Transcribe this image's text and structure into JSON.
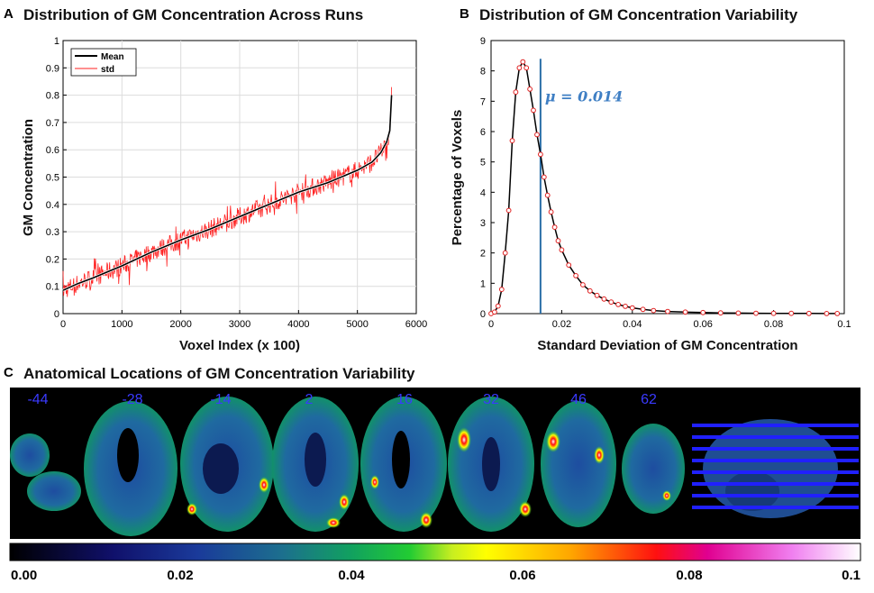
{
  "panels": {
    "a": {
      "letter": "A",
      "title": "Distribution of GM Concentration Across Runs"
    },
    "b": {
      "letter": "B",
      "title": "Distribution of GM Concentration Variability"
    },
    "c": {
      "letter": "C",
      "title": "Anatomical Locations of GM Concentration Variability"
    }
  },
  "chart_data": [
    {
      "type": "line",
      "panel": "A",
      "title": "Distribution of GM Concentration Across Runs",
      "xlabel": "Voxel Index (x 100)",
      "ylabel": "GM Concentration",
      "xlim": [
        0,
        6000
      ],
      "ylim": [
        0,
        1
      ],
      "xticks": [
        0,
        1000,
        2000,
        3000,
        4000,
        5000,
        6000
      ],
      "yticks": [
        0,
        0.1,
        0.2,
        0.3,
        0.4,
        0.5,
        0.6,
        0.7,
        0.8,
        0.9,
        1
      ],
      "grid": true,
      "legend": {
        "position": "top-left",
        "entries": [
          "Mean",
          "std"
        ]
      },
      "series": [
        {
          "name": "Mean",
          "color": "#000000",
          "x": [
            0,
            250,
            500,
            1000,
            1500,
            2000,
            2500,
            3000,
            3500,
            4000,
            4500,
            5000,
            5250,
            5400,
            5500,
            5550,
            5580
          ],
          "y": [
            0.085,
            0.11,
            0.13,
            0.175,
            0.225,
            0.27,
            0.31,
            0.355,
            0.4,
            0.445,
            0.48,
            0.525,
            0.555,
            0.59,
            0.63,
            0.67,
            0.8
          ]
        },
        {
          "name": "std",
          "color": "#ff2020",
          "noise_amplitude": 0.035
        }
      ]
    },
    {
      "type": "line",
      "panel": "B",
      "title": "Distribution of GM Concentration Variability",
      "xlabel": "Standard Deviation of GM Concentration",
      "ylabel": "Percentage of Voxels",
      "xlim": [
        0,
        0.1
      ],
      "ylim": [
        0,
        9
      ],
      "xticks": [
        0,
        0.02,
        0.04,
        0.06,
        0.08,
        0.1
      ],
      "yticks": [
        0,
        1,
        2,
        3,
        4,
        5,
        6,
        7,
        8,
        9
      ],
      "mean_line": {
        "x": 0.014,
        "label": "μ = 0.014",
        "color": "#2a6ea8"
      },
      "series": [
        {
          "name": "Percentage of Voxels",
          "line_color": "#000000",
          "marker_color": "#e02020",
          "x": [
            0.0,
            0.001,
            0.002,
            0.003,
            0.004,
            0.005,
            0.006,
            0.007,
            0.008,
            0.009,
            0.01,
            0.011,
            0.012,
            0.013,
            0.014,
            0.015,
            0.016,
            0.017,
            0.018,
            0.019,
            0.02,
            0.022,
            0.024,
            0.026,
            0.028,
            0.03,
            0.032,
            0.034,
            0.036,
            0.038,
            0.04,
            0.043,
            0.046,
            0.05,
            0.055,
            0.06,
            0.065,
            0.07,
            0.075,
            0.08,
            0.085,
            0.09,
            0.095,
            0.098
          ],
          "y": [
            0.0,
            0.05,
            0.25,
            0.8,
            2.0,
            3.4,
            5.7,
            7.3,
            8.1,
            8.3,
            8.1,
            7.4,
            6.7,
            5.9,
            5.25,
            4.5,
            3.9,
            3.35,
            2.85,
            2.4,
            2.1,
            1.6,
            1.25,
            0.95,
            0.75,
            0.6,
            0.48,
            0.38,
            0.3,
            0.24,
            0.19,
            0.14,
            0.1,
            0.07,
            0.05,
            0.035,
            0.025,
            0.018,
            0.013,
            0.01,
            0.008,
            0.006,
            0.004,
            0.003
          ]
        }
      ]
    },
    {
      "type": "heatmap",
      "panel": "C",
      "title": "Anatomical Locations of GM Concentration Variability",
      "slice_labels": [
        "-44",
        "-28",
        "-14",
        "2",
        "16",
        "32",
        "46",
        "62"
      ],
      "colorbar": {
        "ticks": [
          "0.00",
          "0.02",
          "0.04",
          "0.06",
          "0.08",
          "0.1"
        ],
        "range": [
          0,
          0.1
        ]
      }
    }
  ]
}
